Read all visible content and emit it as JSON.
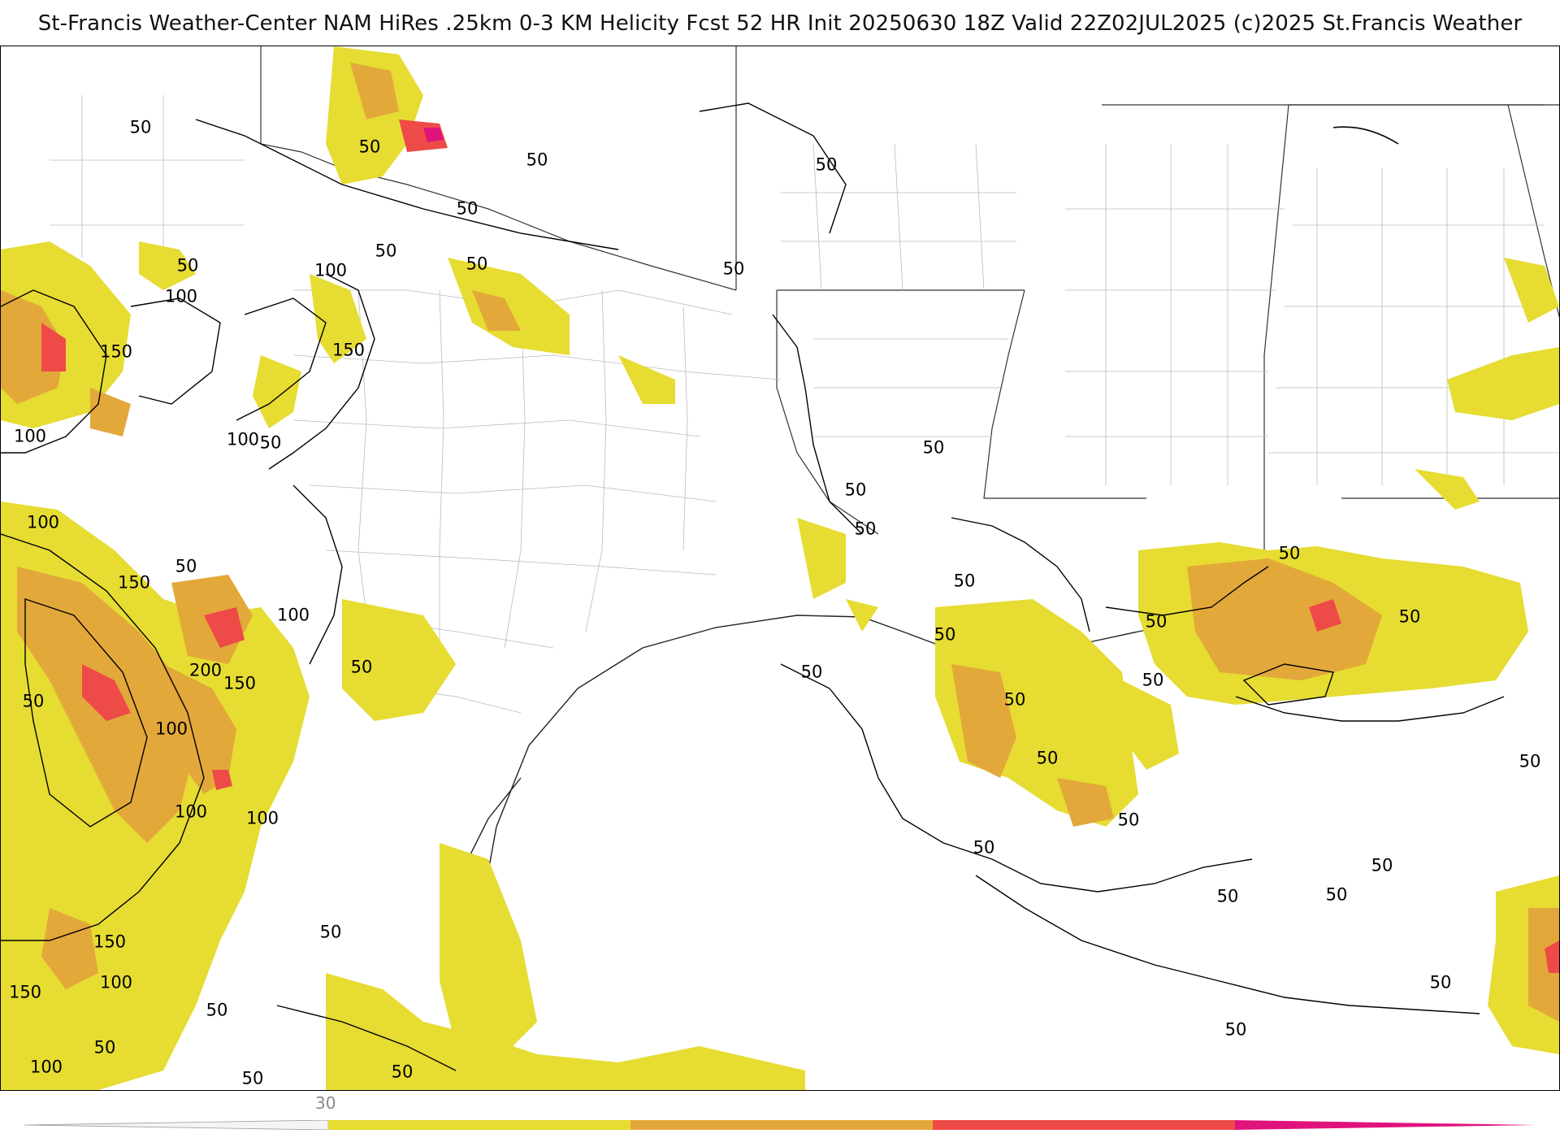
{
  "title": "St-Francis Weather-Center NAM HiRes .25km 0-3 KM Helicity Fcst 52 HR Init 20250630 18Z  Valid 22Z02JUL2025    (c)2025 St.Francis Weather",
  "colorbar": {
    "tick_label": "30",
    "bins": [
      {
        "color": "#e6dc32"
      },
      {
        "color": "#e3a83a"
      },
      {
        "color": "#ee4a48"
      },
      {
        "color": "#e0127c"
      }
    ]
  },
  "contour_labels": [
    "50",
    "50",
    "50",
    "50",
    "50",
    "50",
    "50",
    "50",
    "50",
    "100",
    "100",
    "150",
    "150",
    "100",
    "100",
    "50",
    "50",
    "50",
    "50",
    "50",
    "100",
    "150",
    "50",
    "100",
    "200",
    "150",
    "50",
    "50",
    "100",
    "100",
    "100",
    "50",
    "50",
    "50",
    "50",
    "50",
    "50",
    "50",
    "50",
    "50",
    "50",
    "50",
    "50",
    "50",
    "50",
    "50",
    "150",
    "150",
    "100",
    "50",
    "50",
    "100",
    "50",
    "50",
    "50",
    "50"
  ]
}
